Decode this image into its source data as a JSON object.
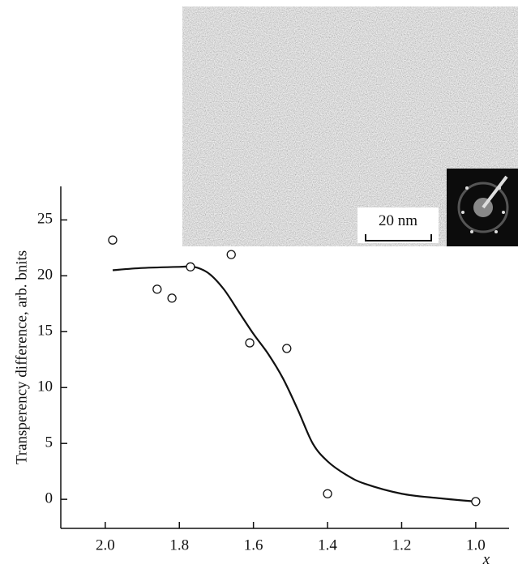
{
  "chart_data": {
    "type": "scatter",
    "xlabel": "x",
    "ylabel": "Transperency difference, arb. bnits",
    "annotations": [
      "20 nm"
    ],
    "series": [
      {
        "type": "scatter",
        "color": "#ffffff",
        "x": [
          1.98,
          1.86,
          1.82,
          1.77,
          1.66,
          1.61,
          1.51,
          1.4,
          1.0
        ],
        "values": [
          23.2,
          18.8,
          18.0,
          20.8,
          21.9,
          14.0,
          13.5,
          0.5,
          -0.2
        ]
      },
      {
        "type": "line",
        "color": "#111111",
        "x": [
          1.98,
          1.9,
          1.8,
          1.76,
          1.72,
          1.68,
          1.64,
          1.6,
          1.56,
          1.52,
          1.48,
          1.44,
          1.4,
          1.35,
          1.3,
          1.2,
          1.1,
          1.0
        ],
        "values": [
          20.5,
          20.7,
          20.8,
          20.8,
          20.2,
          18.8,
          16.8,
          14.8,
          13.0,
          10.8,
          8.0,
          5.0,
          3.4,
          2.2,
          1.4,
          0.5,
          0.1,
          -0.2
        ]
      }
    ],
    "xlim": [
      2.12,
      0.91
    ],
    "ylim": [
      -2.6,
      28
    ],
    "xticks": [
      {
        "value": 2.0,
        "label": "2.0"
      },
      1.8,
      1.6,
      1.4,
      1.2,
      {
        "value": 1.0,
        "label": "1.0"
      }
    ],
    "yticks": [
      0,
      5,
      10,
      15,
      20,
      25
    ]
  }
}
